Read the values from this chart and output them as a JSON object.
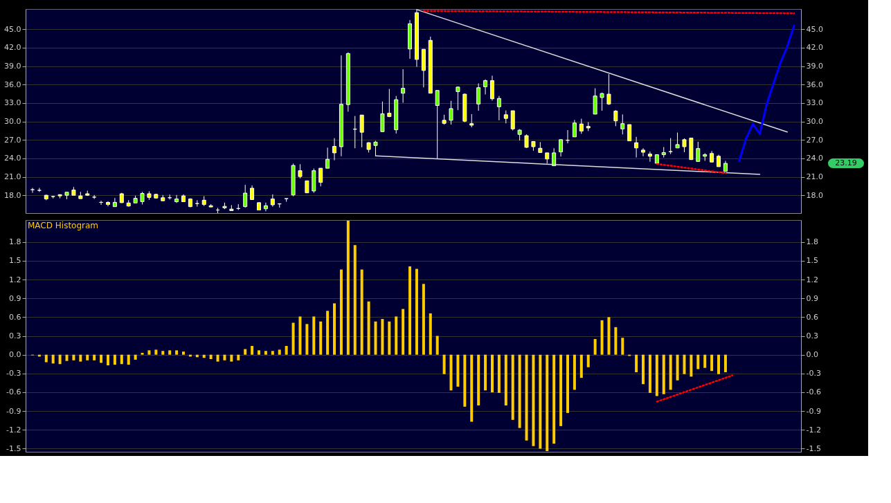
{
  "chart_data": [
    {
      "type": "candlestick",
      "categories": [
        null,
        null,
        null,
        null,
        null,
        null,
        null,
        null,
        null,
        null,
        null,
        null,
        null,
        null,
        null,
        null,
        null,
        null,
        null,
        null,
        null,
        null,
        null,
        null,
        null,
        null,
        null,
        null,
        null,
        null,
        null,
        null,
        null,
        null,
        null,
        null,
        null,
        null,
        null,
        null,
        null,
        null,
        null,
        null,
        null,
        null,
        null,
        null,
        null,
        null,
        null,
        null,
        null,
        null,
        null,
        null,
        null,
        null,
        null,
        null,
        null,
        null,
        null,
        null,
        null,
        null,
        null,
        null,
        null,
        null,
        null,
        null,
        null,
        null,
        null,
        null,
        null,
        null,
        null,
        null,
        null,
        null,
        null,
        null,
        null,
        null,
        null,
        null,
        null,
        null,
        null,
        null,
        null,
        null,
        null,
        null,
        null,
        null,
        null,
        null,
        null,
        null,
        null,
        null,
        null,
        null,
        null,
        null,
        null,
        null,
        null,
        null
      ],
      "ohlc": [
        [
          18.9,
          19.2,
          18.4,
          18.9
        ],
        [
          18.8,
          19.2,
          18.55,
          18.8
        ],
        [
          18.0,
          18.1,
          17.2,
          17.4
        ],
        [
          17.8,
          17.9,
          17.5,
          17.8
        ],
        [
          18.1,
          18.15,
          17.5,
          17.9
        ],
        [
          18.0,
          18.5,
          17.35,
          18.5
        ],
        [
          18.85,
          19.35,
          18.0,
          18.0
        ],
        [
          17.9,
          18.55,
          17.45,
          17.45
        ],
        [
          18.25,
          18.75,
          17.9,
          18.0
        ],
        [
          17.7,
          18.05,
          17.4,
          17.7
        ],
        [
          16.85,
          17.1,
          16.45,
          16.85
        ],
        [
          16.85,
          17.0,
          16.2,
          16.5
        ],
        [
          16.15,
          17.55,
          16.15,
          16.85
        ],
        [
          18.25,
          18.4,
          16.75,
          16.8
        ],
        [
          16.75,
          17.2,
          16.15,
          16.25
        ],
        [
          16.75,
          17.95,
          16.75,
          17.5
        ],
        [
          16.95,
          18.55,
          16.5,
          18.3
        ],
        [
          18.25,
          18.65,
          17.25,
          17.65
        ],
        [
          18.15,
          18.25,
          17.5,
          17.55
        ],
        [
          17.6,
          18.05,
          17.1,
          17.1
        ],
        [
          17.6,
          18.1,
          17.3,
          17.6
        ],
        [
          16.95,
          18.05,
          16.75,
          17.4
        ],
        [
          17.9,
          18.15,
          16.95,
          16.95
        ],
        [
          17.4,
          17.5,
          16.05,
          16.15
        ],
        [
          16.65,
          17.2,
          16.15,
          16.65
        ],
        [
          17.2,
          17.85,
          16.25,
          16.5
        ],
        [
          16.3,
          16.55,
          16.1,
          16.1
        ],
        [
          15.6,
          15.95,
          15.1,
          15.6
        ],
        [
          15.95,
          16.8,
          15.75,
          16.2
        ],
        [
          15.75,
          16.4,
          15.5,
          15.5
        ],
        [
          15.85,
          16.55,
          15.6,
          15.85
        ],
        [
          16.15,
          19.7,
          16.0,
          18.35
        ],
        [
          19.15,
          19.6,
          17.3,
          17.3
        ],
        [
          16.8,
          16.85,
          15.6,
          15.6
        ],
        [
          15.8,
          16.8,
          15.4,
          16.3
        ],
        [
          17.4,
          18.15,
          16.15,
          16.45
        ],
        [
          16.6,
          16.7,
          16.0,
          16.6
        ],
        [
          17.45,
          17.45,
          16.95,
          17.45
        ],
        [
          18.05,
          23.15,
          17.85,
          22.85
        ],
        [
          22.0,
          23.05,
          20.75,
          21.05
        ],
        [
          20.35,
          20.35,
          18.4,
          18.4
        ],
        [
          18.7,
          22.35,
          18.4,
          22.0
        ],
        [
          22.4,
          22.4,
          19.45,
          20.1
        ],
        [
          22.4,
          25.75,
          22.4,
          23.85
        ],
        [
          25.95,
          27.3,
          23.7,
          24.9
        ],
        [
          25.9,
          40.75,
          24.35,
          32.8
        ],
        [
          32.75,
          41.25,
          31.6,
          41.05
        ],
        [
          28.75,
          30.9,
          25.65,
          28.75
        ],
        [
          31.05,
          31.05,
          25.8,
          28.25
        ],
        [
          26.55,
          26.65,
          24.95,
          25.45
        ],
        [
          26.1,
          26.85,
          24.35,
          26.65
        ],
        [
          28.35,
          33.25,
          28.35,
          31.25
        ],
        [
          31.35,
          35.3,
          30.7,
          30.8
        ],
        [
          28.65,
          34.15,
          28.05,
          33.55
        ],
        [
          34.6,
          38.5,
          33.05,
          35.4
        ],
        [
          41.8,
          46.5,
          40.2,
          45.9
        ],
        [
          47.7,
          48.2,
          38.9,
          40.1
        ],
        [
          41.75,
          41.75,
          35.55,
          38.3
        ],
        [
          43.2,
          43.8,
          34.6,
          34.6
        ],
        [
          32.6,
          35.05,
          23.95,
          35.05
        ],
        [
          30.2,
          31.1,
          29.5,
          29.7
        ],
        [
          30.2,
          33.35,
          29.5,
          32.1
        ],
        [
          34.85,
          35.7,
          31.85,
          35.6
        ],
        [
          34.45,
          34.55,
          29.9,
          30.05
        ],
        [
          29.65,
          31.2,
          29.05,
          29.4
        ],
        [
          32.85,
          36.2,
          31.75,
          35.5
        ],
        [
          35.65,
          36.85,
          34.4,
          36.65
        ],
        [
          36.65,
          37.45,
          33.4,
          33.7
        ],
        [
          32.4,
          34.15,
          30.2,
          33.75
        ],
        [
          31.1,
          31.8,
          29.7,
          30.5
        ],
        [
          31.75,
          31.75,
          28.55,
          28.8
        ],
        [
          27.9,
          28.75,
          26.9,
          28.6
        ],
        [
          27.7,
          27.9,
          25.7,
          25.8
        ],
        [
          26.75,
          26.75,
          25.25,
          25.9
        ],
        [
          25.65,
          26.65,
          24.95,
          24.95
        ],
        [
          24.9,
          24.9,
          23.15,
          23.9
        ],
        [
          22.8,
          25.65,
          22.8,
          24.9
        ],
        [
          25.05,
          27.05,
          24.3,
          27.05
        ],
        [
          26.95,
          28.6,
          26.45,
          26.95
        ],
        [
          27.5,
          30.25,
          27.5,
          29.75
        ],
        [
          29.6,
          30.45,
          28.0,
          28.45
        ],
        [
          29.2,
          29.9,
          28.45,
          28.95
        ],
        [
          31.2,
          35.4,
          31.2,
          34.15
        ],
        [
          33.9,
          34.7,
          31.75,
          34.55
        ],
        [
          34.45,
          37.7,
          32.7,
          32.85
        ],
        [
          31.7,
          31.85,
          29.25,
          30.1
        ],
        [
          28.8,
          31.15,
          27.9,
          29.65
        ],
        [
          29.5,
          29.5,
          26.85,
          26.85
        ],
        [
          26.55,
          27.5,
          24.15,
          25.7
        ],
        [
          25.35,
          25.65,
          24.35,
          25.0
        ],
        [
          24.7,
          25.1,
          23.45,
          24.35
        ],
        [
          23.2,
          24.6,
          23.2,
          24.6
        ],
        [
          24.6,
          25.85,
          24.15,
          24.95
        ],
        [
          25.1,
          27.3,
          24.7,
          25.1
        ],
        [
          25.7,
          28.2,
          25.7,
          26.25
        ],
        [
          27.05,
          27.25,
          25.0,
          25.9
        ],
        [
          27.3,
          27.3,
          23.8,
          23.8
        ],
        [
          23.5,
          26.7,
          23.5,
          25.6
        ],
        [
          24.35,
          24.85,
          23.6,
          24.6
        ],
        [
          24.8,
          25.2,
          23.4,
          23.4
        ],
        [
          24.35,
          24.6,
          22.65,
          22.65
        ],
        [
          21.9,
          23.6,
          21.9,
          23.19
        ],
        null,
        null,
        null,
        null,
        null,
        null,
        null,
        null,
        null,
        null
      ],
      "colors": [
        "#ffffff",
        "#ffffff",
        "#ffff00",
        "#ffffff",
        "#ffff00",
        "#66ff00",
        "#ffff00",
        "#ffff00",
        "#ffff00",
        "#ffffff",
        "#ffffff",
        "#ffff00",
        "#66ff00",
        "#ffff00",
        "#ffff00",
        "#66ff00",
        "#66ff00",
        "#ffff00",
        "#ffff00",
        "#ffff00",
        "#ffffff",
        "#66ff00",
        "#ffff00",
        "#ffff00",
        "#ffffff",
        "#ffff00",
        "#ffff00",
        "#ffffff",
        "#66ff00",
        "#ffff00",
        "#ffffff",
        "#66ff00",
        "#ffff00",
        "#ffff00",
        "#66ff00",
        "#ffff00",
        "#ffffff",
        "#ffffff",
        "#66ff00",
        "#ffff00",
        "#ffff00",
        "#66ff00",
        "#ffff00",
        "#66ff00",
        "#ffff00",
        "#66ff00",
        "#66ff00",
        "#ffffff",
        "#ffff00",
        "#ffff00",
        "#66ff00",
        "#66ff00",
        "#ffff00",
        "#66ff00",
        "#66ff00",
        "#66ff00",
        "#ffff00",
        "#ffff00",
        "#ffff00",
        "#66ff00",
        "#ffff00",
        "#66ff00",
        "#66ff00",
        "#ffff00",
        "#ffff00",
        "#66ff00",
        "#66ff00",
        "#ffff00",
        "#66ff00",
        "#ffff00",
        "#ffff00",
        "#66ff00",
        "#ffff00",
        "#ffff00",
        "#ffff00",
        "#ffff00",
        "#66ff00",
        "#66ff00",
        "#ffffff",
        "#66ff00",
        "#ffff00",
        "#ffff00",
        "#66ff00",
        "#66ff00",
        "#ffff00",
        "#ffff00",
        "#66ff00",
        "#ffff00",
        "#ffff00",
        "#ffff00",
        "#ffff00",
        "#66ff00",
        "#66ff00",
        "#ffffff",
        "#66ff00",
        "#ffff00",
        "#ffff00",
        "#66ff00",
        "#66ff00",
        "#ffff00",
        "#ffff00",
        "#66ff00",
        null,
        null,
        null,
        null,
        null,
        null,
        null,
        null,
        null,
        null
      ],
      "series": [
        {
          "type": "line",
          "color": "#dddddd",
          "line_style": "solid",
          "values": [
            null,
            null,
            null,
            null,
            null,
            null,
            null,
            null,
            null,
            null,
            null,
            null,
            null,
            null,
            null,
            null,
            null,
            null,
            null,
            null,
            null,
            null,
            null,
            null,
            null,
            null,
            null,
            null,
            null,
            null,
            null,
            null,
            null,
            null,
            null,
            null,
            null,
            null,
            null,
            null,
            null,
            null,
            null,
            null,
            null,
            null,
            null,
            null,
            null,
            null,
            null,
            null,
            null,
            null,
            null,
            null,
            48.2,
            null,
            null,
            null,
            null,
            null,
            null,
            null,
            null,
            null,
            null,
            null,
            null,
            null,
            null,
            null,
            null,
            null,
            null,
            null,
            null,
            null,
            null,
            null,
            null,
            null,
            null,
            null,
            null,
            null,
            null,
            null,
            null,
            null,
            null,
            null,
            null,
            null,
            null,
            null,
            null,
            null,
            null,
            null,
            null,
            null,
            null,
            null,
            null,
            null,
            null,
            null,
            null,
            null,
            28.3,
            null
          ]
        },
        {
          "type": "line",
          "color": "#dddddd",
          "line_style": "solid",
          "values": [
            null,
            null,
            null,
            null,
            null,
            null,
            null,
            null,
            null,
            null,
            null,
            null,
            null,
            null,
            null,
            null,
            null,
            null,
            null,
            null,
            null,
            null,
            null,
            null,
            null,
            null,
            null,
            null,
            null,
            null,
            null,
            null,
            null,
            null,
            null,
            null,
            null,
            null,
            null,
            null,
            null,
            null,
            null,
            null,
            null,
            null,
            null,
            null,
            null,
            null,
            24.4,
            null,
            null,
            null,
            null,
            null,
            null,
            null,
            null,
            null,
            null,
            null,
            null,
            null,
            null,
            null,
            null,
            null,
            null,
            null,
            null,
            null,
            null,
            null,
            null,
            null,
            null,
            null,
            null,
            null,
            null,
            null,
            null,
            null,
            null,
            null,
            null,
            null,
            null,
            null,
            null,
            null,
            null,
            null,
            null,
            null,
            null,
            null,
            null,
            null,
            null,
            null,
            null,
            null,
            null,
            null,
            21.4,
            null,
            null,
            null,
            null,
            null
          ]
        },
        {
          "type": "line",
          "color": "#ff0000",
          "line_style": "dotted",
          "values": [
            null,
            null,
            null,
            null,
            null,
            null,
            null,
            null,
            null,
            null,
            null,
            null,
            null,
            null,
            null,
            null,
            null,
            null,
            null,
            null,
            null,
            null,
            null,
            null,
            null,
            null,
            null,
            null,
            null,
            null,
            null,
            null,
            null,
            null,
            null,
            null,
            null,
            null,
            null,
            null,
            null,
            null,
            null,
            null,
            null,
            null,
            null,
            null,
            null,
            null,
            null,
            null,
            null,
            null,
            null,
            null,
            null,
            48.0,
            null,
            null,
            null,
            null,
            null,
            null,
            null,
            null,
            null,
            null,
            null,
            null,
            null,
            null,
            null,
            null,
            null,
            null,
            null,
            null,
            null,
            null,
            null,
            null,
            null,
            null,
            null,
            null,
            null,
            null,
            null,
            null,
            null,
            null,
            null,
            null,
            null,
            null,
            null,
            null,
            null,
            null,
            null,
            null,
            null,
            null,
            null,
            null,
            null,
            null,
            null,
            null,
            null,
            47.6
          ]
        },
        {
          "type": "line",
          "color": "#ff0000",
          "line_style": "dotted",
          "values": [
            null,
            null,
            null,
            null,
            null,
            null,
            null,
            null,
            null,
            null,
            null,
            null,
            null,
            null,
            null,
            null,
            null,
            null,
            null,
            null,
            null,
            null,
            null,
            null,
            null,
            null,
            null,
            null,
            null,
            null,
            null,
            null,
            null,
            null,
            null,
            null,
            null,
            null,
            null,
            null,
            null,
            null,
            null,
            null,
            null,
            null,
            null,
            null,
            null,
            null,
            null,
            null,
            null,
            null,
            null,
            null,
            null,
            null,
            null,
            null,
            null,
            null,
            null,
            null,
            null,
            null,
            null,
            null,
            null,
            null,
            null,
            null,
            null,
            null,
            null,
            null,
            null,
            null,
            null,
            null,
            null,
            null,
            null,
            null,
            null,
            null,
            null,
            null,
            null,
            null,
            null,
            23.1,
            null,
            null,
            null,
            null,
            null,
            null,
            null,
            null,
            null,
            21.6,
            null,
            null,
            null,
            null,
            null,
            null,
            null,
            null,
            null,
            null
          ]
        },
        {
          "type": "line",
          "color": "#0000ff",
          "line_style": "solid",
          "values": [
            null,
            null,
            null,
            null,
            null,
            null,
            null,
            null,
            null,
            null,
            null,
            null,
            null,
            null,
            null,
            null,
            null,
            null,
            null,
            null,
            null,
            null,
            null,
            null,
            null,
            null,
            null,
            null,
            null,
            null,
            null,
            null,
            null,
            null,
            null,
            null,
            null,
            null,
            null,
            null,
            null,
            null,
            null,
            null,
            null,
            null,
            null,
            null,
            null,
            null,
            null,
            null,
            null,
            null,
            null,
            null,
            null,
            null,
            null,
            null,
            null,
            null,
            null,
            null,
            null,
            null,
            null,
            null,
            null,
            null,
            null,
            null,
            null,
            null,
            null,
            null,
            null,
            null,
            null,
            null,
            null,
            null,
            null,
            null,
            null,
            null,
            null,
            null,
            null,
            null,
            null,
            null,
            null,
            null,
            null,
            null,
            null,
            null,
            null,
            null,
            null,
            null,
            null,
            23.6,
            27.2,
            29.6,
            28.0,
            32.8,
            36.2,
            39.5,
            42.2,
            45.6
          ]
        }
      ],
      "annotations": [
        "23.19"
      ],
      "ylim": [
        15.1,
        48.3
      ],
      "yticks": [
        {
          "value": 18,
          "label": "18.0"
        },
        {
          "value": 21,
          "label": "21.0"
        },
        {
          "value": 24,
          "label": "24.0"
        },
        {
          "value": 27,
          "label": "27.0"
        },
        {
          "value": 30,
          "label": "30.0"
        },
        {
          "value": 33,
          "label": "33.0"
        },
        {
          "value": 36,
          "label": "36.0"
        },
        {
          "value": 39,
          "label": "39.0"
        },
        {
          "value": 42,
          "label": "42.0"
        },
        {
          "value": 45,
          "label": "45.0"
        }
      ],
      "y2lim": [
        15.1,
        48.3
      ],
      "y2ticks": [
        {
          "value": 18,
          "label": "18.0"
        },
        {
          "value": 21,
          "label": "21.0"
        },
        {
          "value": 24,
          "label": "24.0"
        },
        {
          "value": 27,
          "label": "27.0"
        },
        {
          "value": 30,
          "label": "30.0"
        },
        {
          "value": 33,
          "label": "33.0"
        },
        {
          "value": 36,
          "label": "36.0"
        },
        {
          "value": 39,
          "label": "39.0"
        },
        {
          "value": 42,
          "label": "42.0"
        },
        {
          "value": 45,
          "label": "45.0"
        }
      ],
      "grid": "y",
      "tick_labels": "y"
    },
    {
      "type": "bar",
      "title": "MACD Histogram",
      "color": "#ffcc00",
      "categories": [
        null,
        null,
        null,
        null,
        null,
        null,
        null,
        null,
        null,
        null,
        null,
        null,
        null,
        null,
        null,
        null,
        null,
        null,
        null,
        null,
        null,
        null,
        null,
        null,
        null,
        null,
        null,
        null,
        null,
        null,
        null,
        null,
        null,
        null,
        null,
        null,
        null,
        null,
        null,
        null,
        null,
        null,
        null,
        null,
        null,
        null,
        null,
        null,
        null,
        null,
        null,
        null,
        null,
        null,
        null,
        null,
        null,
        null,
        null,
        null,
        null,
        null,
        null,
        null,
        null,
        null,
        null,
        null,
        null,
        null,
        null,
        null,
        null,
        null,
        null,
        null,
        null,
        null,
        null,
        null,
        null,
        null,
        null,
        null,
        null,
        null,
        null,
        null,
        null,
        null,
        null,
        null,
        null,
        null,
        null,
        null,
        null,
        null,
        null,
        null,
        null,
        null,
        null,
        null,
        null,
        null,
        null,
        null,
        null,
        null,
        null,
        null
      ],
      "values": [
        -0.01,
        -0.03,
        -0.12,
        -0.14,
        -0.15,
        -0.1,
        -0.09,
        -0.11,
        -0.09,
        -0.09,
        -0.13,
        -0.17,
        -0.16,
        -0.15,
        -0.16,
        -0.08,
        0.03,
        0.07,
        0.08,
        0.06,
        0.07,
        0.07,
        0.05,
        -0.03,
        -0.04,
        -0.05,
        -0.07,
        -0.11,
        -0.09,
        -0.11,
        -0.09,
        0.09,
        0.14,
        0.07,
        0.06,
        0.06,
        0.08,
        0.14,
        0.51,
        0.61,
        0.49,
        0.61,
        0.53,
        0.7,
        0.82,
        1.36,
        2.14,
        1.75,
        1.36,
        0.85,
        0.53,
        0.57,
        0.53,
        0.61,
        0.73,
        1.41,
        1.37,
        1.13,
        0.66,
        0.3,
        -0.31,
        -0.57,
        -0.51,
        -0.83,
        -1.07,
        -0.81,
        -0.57,
        -0.6,
        -0.61,
        -0.81,
        -1.04,
        -1.17,
        -1.37,
        -1.46,
        -1.5,
        -1.54,
        -1.42,
        -1.14,
        -0.93,
        -0.56,
        -0.37,
        -0.2,
        0.25,
        0.55,
        0.6,
        0.44,
        0.27,
        -0.02,
        -0.28,
        -0.47,
        -0.61,
        -0.66,
        -0.63,
        -0.56,
        -0.41,
        -0.31,
        -0.35,
        -0.23,
        -0.21,
        -0.26,
        -0.31,
        -0.28,
        null,
        null,
        null,
        null,
        null,
        null,
        null,
        null,
        null,
        null
      ],
      "series": [
        {
          "type": "line",
          "color": "#ff0000",
          "line_style": "dotted",
          "values": [
            null,
            null,
            null,
            null,
            null,
            null,
            null,
            null,
            null,
            null,
            null,
            null,
            null,
            null,
            null,
            null,
            null,
            null,
            null,
            null,
            null,
            null,
            null,
            null,
            null,
            null,
            null,
            null,
            null,
            null,
            null,
            null,
            null,
            null,
            null,
            null,
            null,
            null,
            null,
            null,
            null,
            null,
            null,
            null,
            null,
            null,
            null,
            null,
            null,
            null,
            null,
            null,
            null,
            null,
            null,
            null,
            null,
            null,
            null,
            null,
            null,
            null,
            null,
            null,
            null,
            null,
            null,
            null,
            null,
            null,
            null,
            null,
            null,
            null,
            null,
            null,
            null,
            null,
            null,
            null,
            null,
            null,
            null,
            null,
            null,
            null,
            null,
            null,
            null,
            null,
            null,
            -0.75,
            null,
            null,
            null,
            null,
            null,
            null,
            null,
            null,
            null,
            null,
            -0.33,
            null,
            null,
            null,
            null,
            null,
            null,
            null,
            null,
            null
          ]
        }
      ],
      "ylim": [
        -1.55,
        2.15
      ],
      "yticks": [
        -1.5,
        -1.2,
        -0.9,
        -0.6,
        -0.3,
        {
          "value": 0,
          "label": "0.0"
        },
        0.3,
        0.6,
        0.9,
        1.2,
        1.5,
        1.8
      ],
      "y2lim": [
        -1.55,
        2.15
      ],
      "y2ticks": [
        -1.5,
        -1.2,
        -0.9,
        -0.6,
        -0.3,
        {
          "value": 0,
          "label": "0.0"
        },
        0.3,
        0.6,
        0.9,
        1.2,
        1.5,
        1.8
      ],
      "grid": "y",
      "tick_labels": "y"
    }
  ]
}
